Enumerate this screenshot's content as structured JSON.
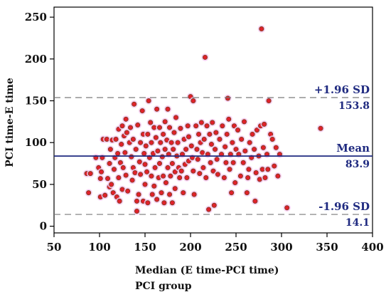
{
  "colors": {
    "point_fill": "#e0202c",
    "point_stroke": "#7a3e1a",
    "point_halo": "#f6c8f0",
    "mean_line": "#1f2a80",
    "limit_line": "#7a7a7a",
    "annotation_text": "#1f2a80",
    "axis": "#000000"
  },
  "chart_data": {
    "type": "scatter",
    "xlabel": "Median (E time-PCI time)",
    "ylabel": "PCI time-E time",
    "caption": "PCI group",
    "xlim": [
      50,
      400
    ],
    "ylim": [
      -8,
      262
    ],
    "xticks": [
      50,
      100,
      150,
      200,
      250,
      300,
      350,
      400
    ],
    "yticks": [
      0,
      50,
      100,
      150,
      200,
      250
    ],
    "tick_labels_x": [
      "50",
      "100",
      "150",
      "200",
      "250",
      "300",
      "350",
      "400"
    ],
    "tick_labels_y": [
      "0",
      "50",
      "100",
      "150",
      "200",
      "250"
    ],
    "reference_lines": [
      {
        "name": "upper",
        "label": "+1.96 SD",
        "value_text": "153.8",
        "value": 153.8,
        "style": "dashed"
      },
      {
        "name": "mean",
        "label": "Mean",
        "value_text": "83.9",
        "value": 83.9,
        "style": "solid"
      },
      {
        "name": "lower",
        "label": "-1.96 SD",
        "value_text": "14.1",
        "value": 14.1,
        "style": "dashed"
      }
    ],
    "points": [
      [
        86,
        63
      ],
      [
        88,
        40
      ],
      [
        90,
        63
      ],
      [
        96,
        82
      ],
      [
        99,
        70
      ],
      [
        101,
        35
      ],
      [
        101,
        57
      ],
      [
        102,
        65
      ],
      [
        103,
        82
      ],
      [
        104,
        104
      ],
      [
        106,
        37
      ],
      [
        108,
        104
      ],
      [
        109,
        57
      ],
      [
        111,
        47
      ],
      [
        111,
        75
      ],
      [
        112,
        92
      ],
      [
        113,
        50
      ],
      [
        114,
        103
      ],
      [
        115,
        40
      ],
      [
        116,
        68
      ],
      [
        117,
        82
      ],
      [
        118,
        104
      ],
      [
        119,
        35
      ],
      [
        120,
        87
      ],
      [
        121,
        58
      ],
      [
        121,
        116
      ],
      [
        122,
        30
      ],
      [
        123,
        76
      ],
      [
        124,
        98
      ],
      [
        125,
        44
      ],
      [
        125,
        120
      ],
      [
        126,
        70
      ],
      [
        127,
        108
      ],
      [
        128,
        88
      ],
      [
        129,
        128
      ],
      [
        129,
        61
      ],
      [
        130,
        112
      ],
      [
        131,
        42
      ],
      [
        133,
        100
      ],
      [
        134,
        118
      ],
      [
        135,
        83
      ],
      [
        136,
        55
      ],
      [
        137,
        70
      ],
      [
        137,
        104
      ],
      [
        138,
        146
      ],
      [
        139,
        64
      ],
      [
        140,
        92
      ],
      [
        141,
        18
      ],
      [
        141,
        30
      ],
      [
        142,
        121
      ],
      [
        143,
        38
      ],
      [
        144,
        77
      ],
      [
        145,
        100
      ],
      [
        145,
        62
      ],
      [
        147,
        138
      ],
      [
        148,
        110
      ],
      [
        148,
        30
      ],
      [
        149,
        87
      ],
      [
        150,
        50
      ],
      [
        150,
        74
      ],
      [
        151,
        96
      ],
      [
        152,
        65
      ],
      [
        153,
        110
      ],
      [
        153,
        28
      ],
      [
        154,
        150
      ],
      [
        155,
        82
      ],
      [
        156,
        124
      ],
      [
        157,
        60
      ],
      [
        157,
        100
      ],
      [
        158,
        38
      ],
      [
        159,
        87
      ],
      [
        160,
        118
      ],
      [
        160,
        48
      ],
      [
        161,
        70
      ],
      [
        162,
        106
      ],
      [
        163,
        32
      ],
      [
        163,
        140
      ],
      [
        164,
        90
      ],
      [
        165,
        58
      ],
      [
        166,
        75
      ],
      [
        166,
        118
      ],
      [
        167,
        100
      ],
      [
        168,
        40
      ],
      [
        169,
        83
      ],
      [
        170,
        110
      ],
      [
        170,
        60
      ],
      [
        171,
        28
      ],
      [
        172,
        125
      ],
      [
        172,
        92
      ],
      [
        173,
        52
      ],
      [
        174,
        103
      ],
      [
        175,
        70
      ],
      [
        175,
        140
      ],
      [
        176,
        86
      ],
      [
        177,
        38
      ],
      [
        177,
        118
      ],
      [
        178,
        60
      ],
      [
        179,
        100
      ],
      [
        180,
        75
      ],
      [
        180,
        28
      ],
      [
        181,
        92
      ],
      [
        182,
        112
      ],
      [
        183,
        45
      ],
      [
        183,
        65
      ],
      [
        184,
        130
      ],
      [
        185,
        84
      ],
      [
        186,
        100
      ],
      [
        187,
        70
      ],
      [
        188,
        58
      ],
      [
        189,
        117
      ],
      [
        190,
        66
      ],
      [
        191,
        86
      ],
      [
        192,
        40
      ],
      [
        193,
        104
      ],
      [
        194,
        74
      ],
      [
        195,
        92
      ],
      [
        196,
        58
      ],
      [
        197,
        120
      ],
      [
        198,
        78
      ],
      [
        198,
        107
      ],
      [
        200,
        155
      ],
      [
        201,
        96
      ],
      [
        202,
        82
      ],
      [
        203,
        150
      ],
      [
        203,
        66
      ],
      [
        204,
        38
      ],
      [
        206,
        120
      ],
      [
        207,
        92
      ],
      [
        208,
        80
      ],
      [
        209,
        110
      ],
      [
        210,
        63
      ],
      [
        211,
        100
      ],
      [
        212,
        124
      ],
      [
        213,
        88
      ],
      [
        214,
        70
      ],
      [
        215,
        104
      ],
      [
        216,
        202
      ],
      [
        217,
        58
      ],
      [
        218,
        120
      ],
      [
        219,
        86
      ],
      [
        220,
        20
      ],
      [
        221,
        110
      ],
      [
        222,
        76
      ],
      [
        223,
        98
      ],
      [
        224,
        124
      ],
      [
        225,
        66
      ],
      [
        226,
        25
      ],
      [
        227,
        92
      ],
      [
        228,
        112
      ],
      [
        229,
        80
      ],
      [
        230,
        62
      ],
      [
        232,
        104
      ],
      [
        234,
        86
      ],
      [
        235,
        120
      ],
      [
        237,
        58
      ],
      [
        238,
        95
      ],
      [
        239,
        76
      ],
      [
        240,
        110
      ],
      [
        241,
        153
      ],
      [
        242,
        128
      ],
      [
        243,
        68
      ],
      [
        244,
        86
      ],
      [
        245,
        40
      ],
      [
        246,
        100
      ],
      [
        247,
        76
      ],
      [
        248,
        120
      ],
      [
        249,
        52
      ],
      [
        250,
        92
      ],
      [
        252,
        115
      ],
      [
        253,
        86
      ],
      [
        255,
        60
      ],
      [
        256,
        104
      ],
      [
        258,
        76
      ],
      [
        259,
        125
      ],
      [
        260,
        90
      ],
      [
        262,
        40
      ],
      [
        263,
        58
      ],
      [
        264,
        68
      ],
      [
        265,
        100
      ],
      [
        267,
        82
      ],
      [
        268,
        110
      ],
      [
        270,
        92
      ],
      [
        271,
        30
      ],
      [
        272,
        64
      ],
      [
        273,
        115
      ],
      [
        275,
        84
      ],
      [
        276,
        56
      ],
      [
        277,
        120
      ],
      [
        278,
        236
      ],
      [
        279,
        68
      ],
      [
        280,
        94
      ],
      [
        281,
        122
      ],
      [
        282,
        58
      ],
      [
        284,
        86
      ],
      [
        285,
        68
      ],
      [
        286,
        150
      ],
      [
        288,
        110
      ],
      [
        290,
        104
      ],
      [
        292,
        72
      ],
      [
        294,
        94
      ],
      [
        296,
        60
      ],
      [
        298,
        86
      ],
      [
        306,
        22
      ],
      [
        343,
        117
      ]
    ]
  }
}
